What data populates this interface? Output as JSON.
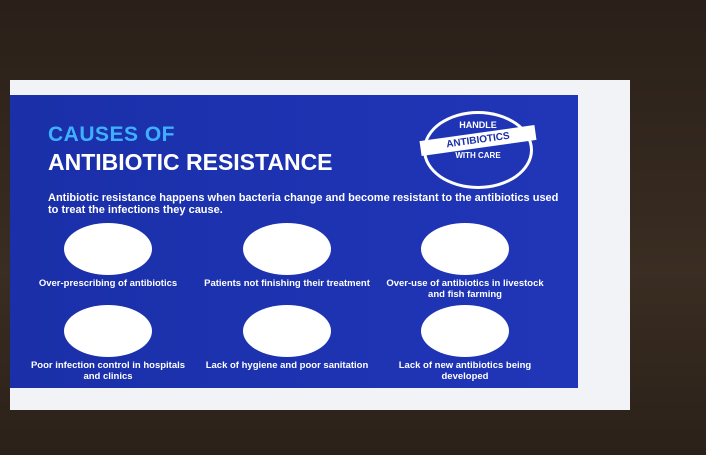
{
  "poster": {
    "title_line1": "CAUSES OF",
    "title_line2": "ANTIBIOTIC RESISTANCE",
    "badge": {
      "top": "HANDLE",
      "middle": "ANTIBIOTICS",
      "bottom": "WITH CARE"
    },
    "intro": "Antibiotic resistance happens when bacteria change and become resistant to the antibiotics used to treat the infections they cause.",
    "causes": [
      "Over-prescribing of antibiotics",
      "Patients not finishing their treatment",
      "Over-use of antibiotics in livestock and fish farming",
      "Poor infection control in hospitals and clinics",
      "Lack of hygiene and poor sanitation",
      "Lack of new antibiotics being developed"
    ]
  }
}
